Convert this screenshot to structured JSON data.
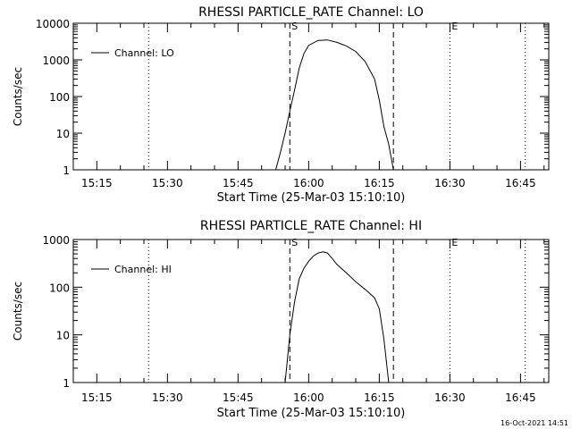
{
  "footer_date": "16-Oct-2021 14:51",
  "chart_data": [
    {
      "type": "line",
      "title": "RHESSI PARTICLE_RATE Channel: LO",
      "xlabel": "Start Time (25-Mar-03 15:10:10)",
      "ylabel": "Counts/sec",
      "y_scale": "log",
      "ylim": [
        1,
        10000
      ],
      "y_ticks": [
        {
          "value": 1,
          "label": "1"
        },
        {
          "value": 10,
          "label": "10"
        },
        {
          "value": 100,
          "label": "100"
        },
        {
          "value": 1000,
          "label": "1000"
        },
        {
          "value": 10000,
          "label": "10000"
        }
      ],
      "xlim": [
        "15:10",
        "16:51"
      ],
      "x_ticks": [
        "15:15",
        "15:30",
        "15:45",
        "16:00",
        "16:15",
        "16:30",
        "16:45"
      ],
      "legend": {
        "label": "Channel: LO",
        "position": "top-left"
      },
      "markers": [
        {
          "time": "15:26",
          "style": "dotted",
          "label": ""
        },
        {
          "time": "15:56",
          "style": "dashed",
          "label": "S"
        },
        {
          "time": "16:18",
          "style": "dashed",
          "label": ""
        },
        {
          "time": "16:30",
          "style": "dotted",
          "label": "E"
        },
        {
          "time": "16:46",
          "style": "dotted",
          "label": ""
        }
      ],
      "series": [
        {
          "name": "Channel: LO",
          "points": [
            [
              "15:53",
              1
            ],
            [
              "15:54",
              3
            ],
            [
              "15:55",
              10
            ],
            [
              "15:56",
              40
            ],
            [
              "15:57",
              150
            ],
            [
              "15:58",
              600
            ],
            [
              "15:59",
              1500
            ],
            [
              "16:00",
              2500
            ],
            [
              "16:02",
              3400
            ],
            [
              "16:04",
              3500
            ],
            [
              "16:06",
              3000
            ],
            [
              "16:08",
              2400
            ],
            [
              "16:10",
              1700
            ],
            [
              "16:12",
              900
            ],
            [
              "16:14",
              300
            ],
            [
              "16:15",
              80
            ],
            [
              "16:16",
              15
            ],
            [
              "16:17",
              5
            ],
            [
              "16:18",
              1
            ]
          ]
        }
      ]
    },
    {
      "type": "line",
      "title": "RHESSI PARTICLE_RATE Channel: HI",
      "xlabel": "Start Time (25-Mar-03 15:10:10)",
      "ylabel": "Counts/sec",
      "y_scale": "log",
      "ylim": [
        1,
        1000
      ],
      "y_ticks": [
        {
          "value": 1,
          "label": "1"
        },
        {
          "value": 10,
          "label": "10"
        },
        {
          "value": 100,
          "label": "100"
        },
        {
          "value": 1000,
          "label": "1000"
        }
      ],
      "xlim": [
        "15:10",
        "16:51"
      ],
      "x_ticks": [
        "15:15",
        "15:30",
        "15:45",
        "16:00",
        "16:15",
        "16:30",
        "16:45"
      ],
      "legend": {
        "label": "Channel: HI",
        "position": "top-left"
      },
      "markers": [
        {
          "time": "15:26",
          "style": "dotted",
          "label": ""
        },
        {
          "time": "15:56",
          "style": "dashed",
          "label": "S"
        },
        {
          "time": "16:18",
          "style": "dashed",
          "label": ""
        },
        {
          "time": "16:30",
          "style": "dotted",
          "label": "E"
        },
        {
          "time": "16:46",
          "style": "dotted",
          "label": ""
        }
      ],
      "series": [
        {
          "name": "Channel: HI",
          "points": [
            [
              "15:55",
              1
            ],
            [
              "15:56",
              10
            ],
            [
              "15:57",
              50
            ],
            [
              "15:58",
              150
            ],
            [
              "15:59",
              250
            ],
            [
              "16:00",
              350
            ],
            [
              "16:01",
              450
            ],
            [
              "16:02",
              520
            ],
            [
              "16:03",
              550
            ],
            [
              "16:04",
              520
            ],
            [
              "16:05",
              400
            ],
            [
              "16:06",
              300
            ],
            [
              "16:08",
              200
            ],
            [
              "16:10",
              130
            ],
            [
              "16:12",
              90
            ],
            [
              "16:14",
              60
            ],
            [
              "16:15",
              35
            ],
            [
              "16:16",
              8
            ],
            [
              "16:17",
              1
            ]
          ]
        }
      ]
    }
  ]
}
